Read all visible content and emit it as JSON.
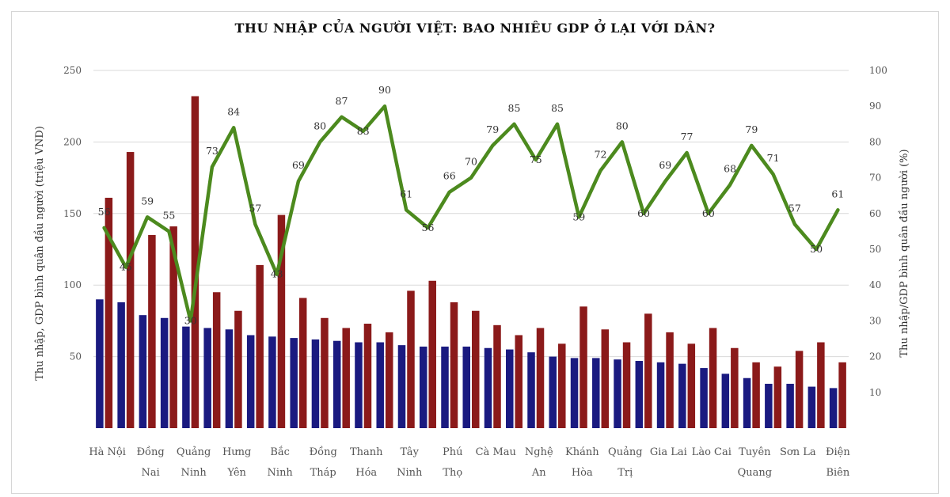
{
  "chart_data": {
    "type": "bar+line",
    "title": "THU NHẬP CỦA NGƯỜI VIỆT: BAO NHIÊU GDP Ở LẠI VỚI DÂN?",
    "ylabel_left": "Thu nhập, GDP bình quân đầu người (triệu VND)",
    "ylabel_right": "Thu nhập/GDP bình quân đầu người (%)",
    "ylim_left": [
      0,
      250
    ],
    "ylim_right": [
      0,
      100
    ],
    "left_ticks": [
      "",
      "50",
      "100",
      "150",
      "200",
      "250"
    ],
    "right_ticks": [
      "",
      "10",
      "20",
      "30",
      "40",
      "50",
      "60",
      "70",
      "80",
      "90",
      "100"
    ],
    "grid": "horizontal",
    "colors": {
      "income": "#1a1a80",
      "gdp": "#8b1a1a",
      "ratio": "#4c8a1e",
      "grid": "#d9d9d9"
    },
    "category_labels": [
      {
        "l1": "Hà Nội",
        "l2": ""
      },
      {
        "l1": "Đồng",
        "l2": "Nai"
      },
      {
        "l1": "Quảng",
        "l2": "Ninh"
      },
      {
        "l1": "Hưng",
        "l2": "Yên"
      },
      {
        "l1": "Bắc",
        "l2": "Ninh"
      },
      {
        "l1": "Đồng",
        "l2": "Tháp"
      },
      {
        "l1": "Thanh",
        "l2": "Hóa"
      },
      {
        "l1": "Tây",
        "l2": "Ninh"
      },
      {
        "l1": "Phú",
        "l2": "Thọ"
      },
      {
        "l1": "Cà Mau",
        "l2": ""
      },
      {
        "l1": "Nghệ",
        "l2": "An"
      },
      {
        "l1": "Khánh",
        "l2": "Hòa"
      },
      {
        "l1": "Quảng",
        "l2": "Trị"
      },
      {
        "l1": "Gia Lai",
        "l2": ""
      },
      {
        "l1": "Lào Cai",
        "l2": ""
      },
      {
        "l1": "Tuyên",
        "l2": "Quang"
      },
      {
        "l1": "Sơn La",
        "l2": ""
      },
      {
        "l1": "Điện",
        "l2": "Biên"
      }
    ],
    "series": [
      {
        "key": "income",
        "values": [
          90,
          88,
          79,
          77,
          71,
          70,
          69,
          65,
          64,
          63,
          62,
          61,
          60,
          60,
          58,
          57,
          57,
          57,
          56,
          55,
          53,
          50,
          49,
          49,
          48,
          47,
          46,
          45,
          42,
          38,
          35,
          31,
          31,
          29,
          28
        ]
      },
      {
        "key": "gdp",
        "values": [
          161,
          193,
          135,
          141,
          232,
          95,
          82,
          114,
          149,
          91,
          77,
          70,
          73,
          67,
          96,
          103,
          88,
          82,
          72,
          65,
          70,
          59,
          85,
          69,
          60,
          80,
          67,
          59,
          70,
          56,
          46,
          43,
          54,
          60,
          46
        ]
      },
      {
        "key": "ratio",
        "values": [
          56,
          45,
          59,
          55,
          30,
          73,
          84,
          57,
          43,
          69,
          80,
          87,
          83,
          90,
          61,
          56,
          66,
          70,
          79,
          85,
          75,
          85,
          59,
          72,
          80,
          60,
          69,
          77,
          60,
          68,
          79,
          71,
          57,
          50,
          61
        ]
      }
    ],
    "ratio_labels": [
      "56",
      "45",
      "59",
      "55",
      "30",
      "73",
      "84",
      "57",
      "43",
      "69",
      "80",
      "87",
      "83",
      "90",
      "61",
      "56",
      "66",
      "70",
      "79",
      "85",
      "75",
      "85",
      "59",
      "72",
      "80",
      "60",
      "69",
      "77",
      "60",
      "68",
      "79",
      "71",
      "57",
      "50",
      "61"
    ]
  }
}
